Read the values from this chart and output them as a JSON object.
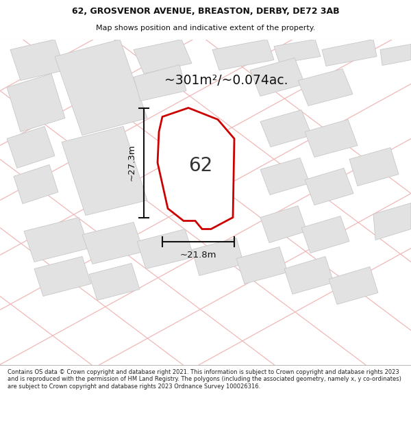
{
  "title_line1": "62, GROSVENOR AVENUE, BREASTON, DERBY, DE72 3AB",
  "title_line2": "Map shows position and indicative extent of the property.",
  "area_text": "~301m²/~0.074ac.",
  "label_62": "62",
  "dim_width": "~21.8m",
  "dim_height": "~27.3m",
  "footer_text": "Contains OS data © Crown copyright and database right 2021. This information is subject to Crown copyright and database rights 2023 and is reproduced with the permission of HM Land Registry. The polygons (including the associated geometry, namely x, y co-ordinates) are subject to Crown copyright and database rights 2023 Ordnance Survey 100026316.",
  "map_bg": "#f2f2f2",
  "road_line_color": "#f0b8b8",
  "building_fill": "#e2e2e2",
  "building_edge": "#c8c8c8",
  "property_fill": "#ffffff",
  "property_edge": "#cc0000",
  "dim_color": "#111111",
  "title_color": "#111111",
  "text_color": "#222222",
  "footer_bg": "#ffffff",
  "title_bg": "#ffffff"
}
